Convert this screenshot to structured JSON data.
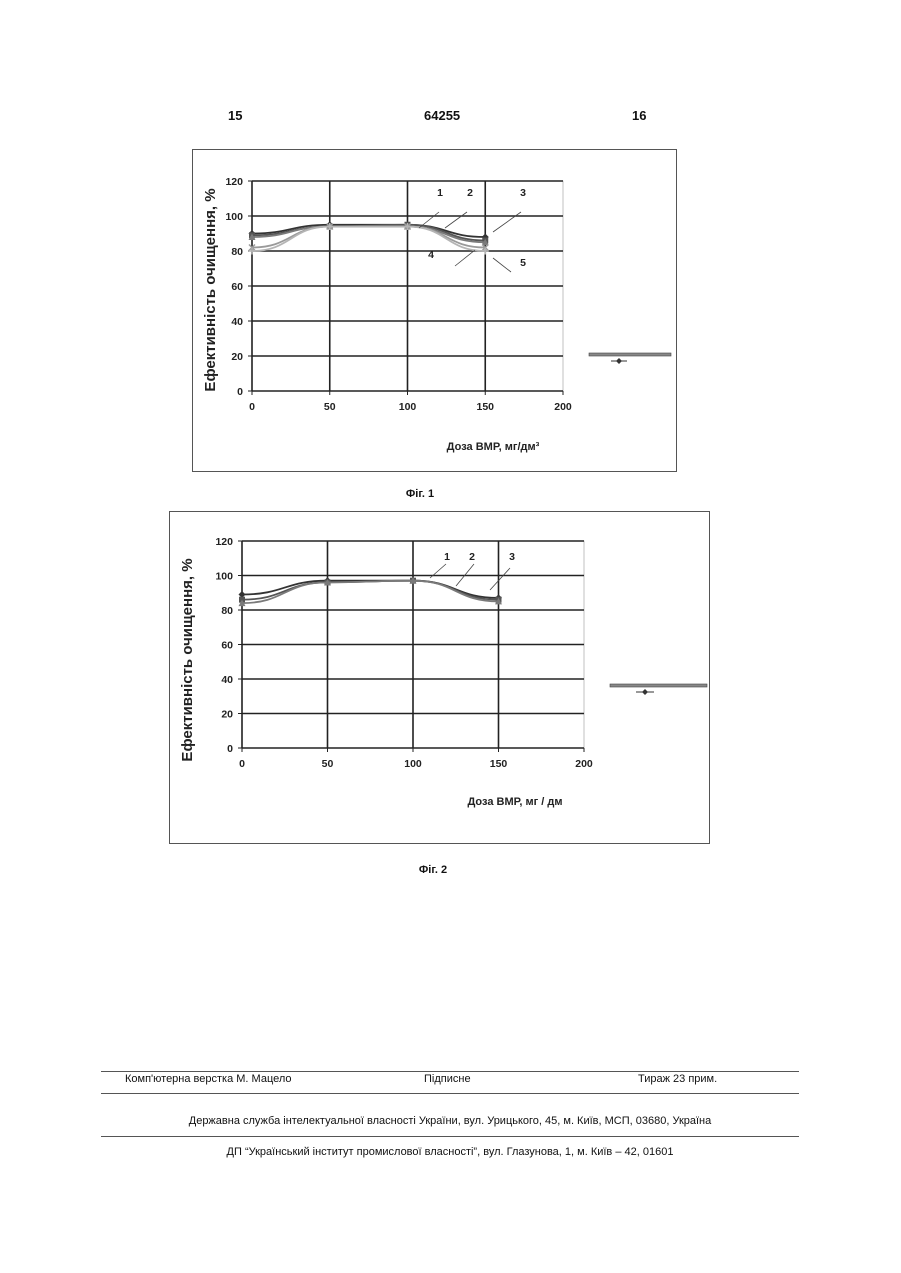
{
  "header": {
    "left_page": "15",
    "patent_number": "64255",
    "right_page": "16"
  },
  "figures": [
    {
      "caption": "Фіг. 1"
    },
    {
      "caption": "Фіг. 2"
    }
  ],
  "chart_data": [
    {
      "type": "line",
      "ylabel": "Ефективність очищення, %",
      "xlabel": "Доза ВМР, мг/дм³",
      "x_ticks": [
        0,
        50,
        100,
        150,
        200
      ],
      "y_ticks": [
        0,
        20,
        40,
        60,
        80,
        100,
        120
      ],
      "xlim": [
        0,
        200
      ],
      "ylim": [
        0,
        120
      ],
      "grid": true,
      "curve_labels": [
        "1",
        "2",
        "3",
        "4",
        "5"
      ],
      "x": [
        0,
        50,
        100,
        150
      ],
      "series": [
        {
          "values": [
            90,
            95,
            95,
            88
          ]
        },
        {
          "values": [
            89,
            94,
            95,
            86
          ]
        },
        {
          "values": [
            88,
            94,
            94,
            85
          ]
        },
        {
          "values": [
            82,
            94,
            94,
            82
          ]
        },
        {
          "values": [
            80,
            94,
            94,
            80
          ]
        }
      ]
    },
    {
      "type": "line",
      "ylabel": "Ефективність очищення, %",
      "xlabel": "Доза ВМР, мг / дм",
      "x_ticks": [
        0,
        50,
        100,
        150,
        200
      ],
      "y_ticks": [
        0,
        20,
        40,
        60,
        80,
        100,
        120
      ],
      "xlim": [
        0,
        200
      ],
      "ylim": [
        0,
        120
      ],
      "grid": true,
      "curve_labels": [
        "1",
        "2",
        "3"
      ],
      "x": [
        0,
        50,
        100,
        150
      ],
      "series": [
        {
          "values": [
            89,
            97,
            97,
            87
          ]
        },
        {
          "values": [
            86,
            96,
            97,
            86
          ]
        },
        {
          "values": [
            84,
            96,
            97,
            85
          ]
        }
      ]
    }
  ],
  "footer": {
    "layout": "Комп'ютерна верстка М. Мацело",
    "signed": "Підписне",
    "circulation": "Тираж 23 прим.",
    "office": "Державна служба інтелектуальної власності України, вул. Урицького, 45, м. Київ, МСП, 03680, Україна",
    "institute": "ДП “Український інститут промислової власності”, вул. Глазунова, 1, м. Київ – 42, 01601"
  }
}
